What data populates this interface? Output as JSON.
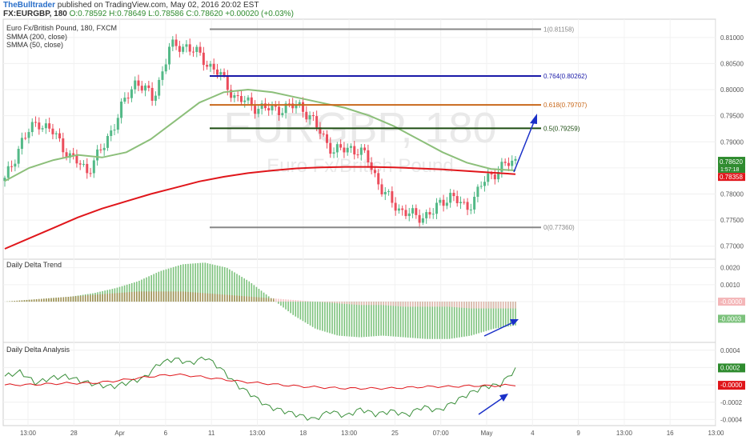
{
  "header": {
    "author": "TheBulltrader",
    "published_text": "published on TradingView.com, May 02, 2016 20:02 EST",
    "symbol": "FX:EURGBP, 180",
    "open": "O:0.78592",
    "high": "H:0.78649",
    "low": "L:0.78586",
    "close": "C:0.78620",
    "change": "+0.00020 (+0.03%)"
  },
  "legend": {
    "instrument": "Euro Fx/British Pound, 180, FXCM",
    "smma200": "SMMA (200, close)",
    "smma50": "SMMA (50, close)"
  },
  "watermark": {
    "big": "EURGBP, 180",
    "small": "Euro Fx/British Pound"
  },
  "colors": {
    "up_candle": "#53b987",
    "down_candle": "#eb4d5c",
    "smma200": "#e0161b",
    "smma50": "#8cbf7a",
    "fib_100": "#888888",
    "fib_764": "#1a1aa8",
    "fib_618": "#c8681b",
    "fib_50": "#1d4d12",
    "fib_0": "#888888",
    "arrow": "#1a30c8",
    "price_badge": "#2e8b2e",
    "smma200_badge": "#e0161b",
    "delta_green": "#7cc27c",
    "delta_red": "#f4b6b8",
    "delta_brown": "#a9884f"
  },
  "chart_data": [
    {
      "type": "candlestick",
      "panel": "main",
      "title": "Euro Fx/British Pound, 180, FXCM",
      "ylim": [
        0.7675,
        0.8135
      ],
      "y_ticks": [
        "0.81000",
        "0.80500",
        "0.80000",
        "0.79500",
        "0.79000",
        "0.78500",
        "0.78000",
        "0.77500",
        "0.77000"
      ],
      "x_ticks": [
        "13:00",
        "28",
        "Apr",
        "6",
        "11",
        "13:00",
        "18",
        "13:00",
        "25",
        "07:00",
        "May",
        "4",
        "9",
        "13:00",
        "16",
        "13:00"
      ],
      "price_path": [
        [
          0.7825,
          0.7822
        ],
        [
          0.79,
          0.7845
        ],
        [
          0.794,
          0.786
        ],
        [
          0.7915,
          0.788
        ],
        [
          0.787,
          0.79
        ],
        [
          0.7845,
          0.788
        ],
        [
          0.789,
          0.786
        ],
        [
          0.796,
          0.792
        ],
        [
          0.802,
          0.799
        ],
        [
          0.798,
          0.803
        ],
        [
          0.808,
          0.804
        ],
        [
          0.8085,
          0.8095
        ],
        [
          0.806,
          0.8085
        ],
        [
          0.803,
          0.806
        ],
        [
          0.7985,
          0.7975
        ],
        [
          0.797,
          0.795
        ],
        [
          0.7962,
          0.7968
        ],
        [
          0.7965,
          0.7955
        ],
        [
          0.797,
          0.7978
        ],
        [
          0.7925,
          0.7945
        ],
        [
          0.788,
          0.79
        ],
        [
          0.789,
          0.79
        ],
        [
          0.787,
          0.788
        ],
        [
          0.78,
          0.785
        ],
        [
          0.777,
          0.7765
        ],
        [
          0.7755,
          0.7752
        ],
        [
          0.7765,
          0.777
        ],
        [
          0.78,
          0.7785
        ],
        [
          0.777,
          0.7775
        ],
        [
          0.782,
          0.781
        ],
        [
          0.785,
          0.784
        ],
        [
          0.7862,
          0.7855
        ]
      ],
      "price_path_note": "",
      "smma200": [
        0.7695,
        0.7715,
        0.7735,
        0.7755,
        0.7772,
        0.7786,
        0.78,
        0.7812,
        0.7824,
        0.7833,
        0.784,
        0.7845,
        0.7849,
        0.7851,
        0.7852,
        0.7852,
        0.7851,
        0.7849,
        0.7847,
        0.7844,
        0.7841,
        0.7838
      ],
      "smma50": [
        0.7825,
        0.785,
        0.7865,
        0.7875,
        0.787,
        0.788,
        0.7905,
        0.794,
        0.7975,
        0.7995,
        0.8,
        0.7995,
        0.7985,
        0.7975,
        0.7965,
        0.795,
        0.793,
        0.7905,
        0.788,
        0.786,
        0.7848,
        0.7845
      ],
      "fib_levels": [
        {
          "ratio_label": "1(0.81158)",
          "value": 0.81158
        },
        {
          "ratio_label": "0.764(0.80262)",
          "value": 0.80262
        },
        {
          "ratio_label": "0.618(0.79707)",
          "value": 0.79707
        },
        {
          "ratio_label": "0.5(0.79259)",
          "value": 0.79259
        },
        {
          "ratio_label": "0(0.77360)",
          "value": 0.7736
        }
      ],
      "price_badges": [
        {
          "label": "0.78620",
          "value": 0.7862,
          "sub": "1:57:18"
        },
        {
          "label": "0.78358",
          "value": 0.78358
        }
      ]
    },
    {
      "type": "histogram",
      "panel": "delta_trend",
      "title": "Daily Delta Trend",
      "ylim": [
        -0.0024,
        0.0025
      ],
      "y_ticks": [
        "0.0020",
        "0.0010",
        "0.0000"
      ],
      "values_green": [
        0.0,
        0.0001,
        0.0002,
        0.0003,
        0.0005,
        0.0008,
        0.0012,
        0.0018,
        0.0022,
        0.0023,
        0.002,
        0.0012,
        0.0002,
        -0.0008,
        -0.0016,
        -0.002,
        -0.0021,
        -0.002,
        -0.0021,
        -0.0022,
        -0.0022,
        -0.002,
        -0.0016,
        -0.0014
      ],
      "values_red_line": [
        0.0,
        0.0001,
        0.0002,
        0.0003,
        0.0004,
        0.0005,
        0.0006,
        0.0006,
        0.0006,
        0.0005,
        0.0004,
        0.0003,
        0.0002,
        0.0001,
        0.0,
        -0.0001,
        -0.0002,
        -0.0002,
        -0.0003,
        -0.0003,
        -0.0003,
        -0.0004,
        -0.0004,
        -0.0004
      ],
      "badges": [
        "-0.0003",
        "-0.0000"
      ]
    },
    {
      "type": "line",
      "panel": "delta_analysis",
      "title": "Daily Delta Analysis",
      "ylim": [
        -0.00047,
        0.00049
      ],
      "y_ticks": [
        "0.0004",
        "0.0002",
        "0.0000",
        "-0.0002",
        "-0.0004"
      ],
      "series": [
        {
          "name": "",
          "color": "#3a8f3a",
          "values": [
            0.0001,
            0.00015,
            2e-05,
            8e-05,
            0.0001,
            4e-05,
            0.0,
            -2e-05,
            3e-05,
            8e-05,
            0.00025,
            0.0003,
            0.00025,
            0.00032,
            0.00018,
            0.0,
            -0.00012,
            -0.00025,
            -0.0003,
            -0.00035,
            -0.0004,
            -0.0003,
            -0.00036,
            -0.00028,
            -0.00034,
            -0.0003,
            -0.00035,
            -0.00025,
            -0.0003,
            -0.0002,
            -0.0001,
            -2e-05,
            0.0,
            0.00018
          ]
        },
        {
          "name": "",
          "color": "#e0161b",
          "values": [
            0.0,
            0.0,
            1e-05,
            2e-05,
            2e-05,
            4e-05,
            7e-05,
            0.0001,
            0.00012,
            0.0001,
            7e-05,
            4e-05,
            2e-05,
            0.0,
            -2e-05,
            -3e-05,
            -4e-05,
            -4e-05,
            -4e-05,
            -3e-05,
            -2e-05,
            -2e-05,
            -1e-05,
            -1e-05,
            0.0
          ]
        }
      ],
      "badges": [
        "0.0002",
        "-0.0000"
      ]
    }
  ]
}
